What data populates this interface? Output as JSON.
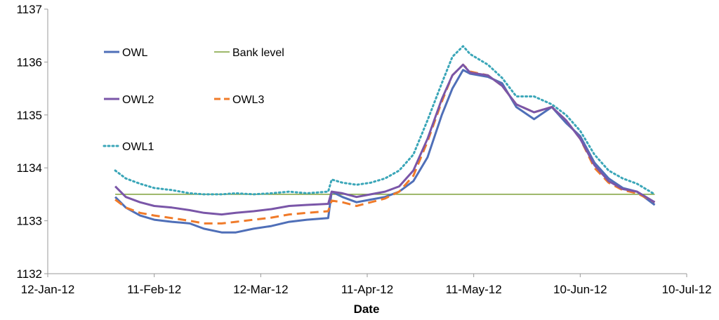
{
  "chart_data": {
    "type": "line",
    "title": "",
    "xlabel": "Date",
    "ylabel": "",
    "ylim": [
      1132,
      1137
    ],
    "xlim": [
      "2012-01-12",
      "2012-07-10"
    ],
    "yticks": [
      "1132",
      "1133",
      "1134",
      "1135",
      "1136",
      "1137"
    ],
    "xticks": [
      {
        "date": "2012-01-12",
        "label": "12-Jan-12"
      },
      {
        "date": "2012-02-11",
        "label": "11-Feb-12"
      },
      {
        "date": "2012-03-12",
        "label": "12-Mar-12"
      },
      {
        "date": "2012-04-11",
        "label": "11-Apr-12"
      },
      {
        "date": "2012-05-11",
        "label": "11-May-12"
      },
      {
        "date": "2012-06-10",
        "label": "10-Jun-12"
      },
      {
        "date": "2012-07-10",
        "label": "10-Jul-12"
      }
    ],
    "grid": false,
    "legend_position": "top-left (inside plot)",
    "series": [
      {
        "name": "OWL",
        "color": "#4f6fb8",
        "style": "solid",
        "points": [
          [
            "2012-01-31",
            1133.45
          ],
          [
            "2012-02-03",
            1133.25
          ],
          [
            "2012-02-07",
            1133.1
          ],
          [
            "2012-02-11",
            1133.02
          ],
          [
            "2012-02-16",
            1132.98
          ],
          [
            "2012-02-21",
            1132.95
          ],
          [
            "2012-02-25",
            1132.85
          ],
          [
            "2012-03-01",
            1132.78
          ],
          [
            "2012-03-05",
            1132.78
          ],
          [
            "2012-03-10",
            1132.85
          ],
          [
            "2012-03-15",
            1132.9
          ],
          [
            "2012-03-20",
            1132.98
          ],
          [
            "2012-03-25",
            1133.02
          ],
          [
            "2012-03-31",
            1133.05
          ],
          [
            "2012-04-01",
            1133.55
          ],
          [
            "2012-04-04",
            1133.45
          ],
          [
            "2012-04-08",
            1133.35
          ],
          [
            "2012-04-12",
            1133.4
          ],
          [
            "2012-04-16",
            1133.45
          ],
          [
            "2012-04-20",
            1133.55
          ],
          [
            "2012-04-24",
            1133.75
          ],
          [
            "2012-04-28",
            1134.2
          ],
          [
            "2012-05-02",
            1135.0
          ],
          [
            "2012-05-05",
            1135.5
          ],
          [
            "2012-05-08",
            1135.85
          ],
          [
            "2012-05-10",
            1135.78
          ],
          [
            "2012-05-15",
            1135.72
          ],
          [
            "2012-05-19",
            1135.6
          ],
          [
            "2012-05-23",
            1135.15
          ],
          [
            "2012-05-28",
            1134.92
          ],
          [
            "2012-06-02",
            1135.15
          ],
          [
            "2012-06-06",
            1134.85
          ],
          [
            "2012-06-10",
            1134.6
          ],
          [
            "2012-06-14",
            1134.1
          ],
          [
            "2012-06-18",
            1133.8
          ],
          [
            "2012-06-22",
            1133.62
          ],
          [
            "2012-06-26",
            1133.55
          ],
          [
            "2012-07-01",
            1133.3
          ]
        ]
      },
      {
        "name": "Bank level",
        "color": "#7fa03a",
        "style": "solid",
        "points": [
          [
            "2012-01-31",
            1133.5
          ],
          [
            "2012-07-01",
            1133.5
          ]
        ]
      },
      {
        "name": "OWL2",
        "color": "#7a56a8",
        "style": "solid",
        "points": [
          [
            "2012-01-31",
            1133.65
          ],
          [
            "2012-02-03",
            1133.45
          ],
          [
            "2012-02-07",
            1133.35
          ],
          [
            "2012-02-11",
            1133.28
          ],
          [
            "2012-02-16",
            1133.25
          ],
          [
            "2012-02-21",
            1133.2
          ],
          [
            "2012-02-25",
            1133.15
          ],
          [
            "2012-03-01",
            1133.12
          ],
          [
            "2012-03-05",
            1133.15
          ],
          [
            "2012-03-10",
            1133.18
          ],
          [
            "2012-03-15",
            1133.22
          ],
          [
            "2012-03-20",
            1133.28
          ],
          [
            "2012-03-25",
            1133.3
          ],
          [
            "2012-03-31",
            1133.32
          ],
          [
            "2012-04-01",
            1133.55
          ],
          [
            "2012-04-04",
            1133.52
          ],
          [
            "2012-04-08",
            1133.45
          ],
          [
            "2012-04-12",
            1133.5
          ],
          [
            "2012-04-16",
            1133.55
          ],
          [
            "2012-04-20",
            1133.65
          ],
          [
            "2012-04-24",
            1133.95
          ],
          [
            "2012-04-28",
            1134.55
          ],
          [
            "2012-05-02",
            1135.3
          ],
          [
            "2012-05-05",
            1135.75
          ],
          [
            "2012-05-08",
            1135.95
          ],
          [
            "2012-05-10",
            1135.8
          ],
          [
            "2012-05-15",
            1135.75
          ],
          [
            "2012-05-19",
            1135.55
          ],
          [
            "2012-05-23",
            1135.2
          ],
          [
            "2012-05-28",
            1135.05
          ],
          [
            "2012-06-02",
            1135.15
          ],
          [
            "2012-06-06",
            1134.9
          ],
          [
            "2012-06-10",
            1134.55
          ],
          [
            "2012-06-14",
            1134.05
          ],
          [
            "2012-06-18",
            1133.75
          ],
          [
            "2012-06-22",
            1133.6
          ],
          [
            "2012-06-26",
            1133.55
          ],
          [
            "2012-07-01",
            1133.35
          ]
        ]
      },
      {
        "name": "OWL3",
        "color": "#f07b2a",
        "style": "dashed",
        "points": [
          [
            "2012-01-31",
            1133.4
          ],
          [
            "2012-02-03",
            1133.25
          ],
          [
            "2012-02-07",
            1133.15
          ],
          [
            "2012-02-11",
            1133.1
          ],
          [
            "2012-02-16",
            1133.05
          ],
          [
            "2012-02-21",
            1133.0
          ],
          [
            "2012-02-25",
            1132.95
          ],
          [
            "2012-03-01",
            1132.95
          ],
          [
            "2012-03-05",
            1132.98
          ],
          [
            "2012-03-10",
            1133.02
          ],
          [
            "2012-03-15",
            1133.06
          ],
          [
            "2012-03-20",
            1133.12
          ],
          [
            "2012-03-25",
            1133.15
          ],
          [
            "2012-03-31",
            1133.18
          ],
          [
            "2012-04-01",
            1133.38
          ],
          [
            "2012-04-04",
            1133.35
          ],
          [
            "2012-04-08",
            1133.28
          ],
          [
            "2012-04-12",
            1133.35
          ],
          [
            "2012-04-16",
            1133.42
          ],
          [
            "2012-04-20",
            1133.55
          ],
          [
            "2012-04-24",
            1133.85
          ],
          [
            "2012-04-28",
            1134.5
          ],
          [
            "2012-05-02",
            1135.25
          ],
          [
            "2012-05-05",
            1135.75
          ],
          [
            "2012-05-08",
            1135.95
          ],
          [
            "2012-05-10",
            1135.82
          ],
          [
            "2012-05-15",
            1135.75
          ],
          [
            "2012-05-19",
            1135.55
          ],
          [
            "2012-05-23",
            1135.2
          ],
          [
            "2012-05-28",
            1135.05
          ],
          [
            "2012-06-02",
            1135.15
          ],
          [
            "2012-06-06",
            1134.9
          ],
          [
            "2012-06-10",
            1134.55
          ],
          [
            "2012-06-14",
            1134.0
          ],
          [
            "2012-06-18",
            1133.72
          ],
          [
            "2012-06-22",
            1133.58
          ],
          [
            "2012-06-26",
            1133.52
          ],
          [
            "2012-07-01",
            1133.35
          ]
        ]
      },
      {
        "name": "OWL1",
        "color": "#3aa6b8",
        "style": "dotted",
        "points": [
          [
            "2012-01-31",
            1133.95
          ],
          [
            "2012-02-03",
            1133.8
          ],
          [
            "2012-02-07",
            1133.7
          ],
          [
            "2012-02-11",
            1133.62
          ],
          [
            "2012-02-16",
            1133.58
          ],
          [
            "2012-02-21",
            1133.52
          ],
          [
            "2012-02-25",
            1133.5
          ],
          [
            "2012-03-01",
            1133.5
          ],
          [
            "2012-03-05",
            1133.52
          ],
          [
            "2012-03-10",
            1133.5
          ],
          [
            "2012-03-15",
            1133.52
          ],
          [
            "2012-03-20",
            1133.55
          ],
          [
            "2012-03-25",
            1133.52
          ],
          [
            "2012-03-31",
            1133.55
          ],
          [
            "2012-04-01",
            1133.78
          ],
          [
            "2012-04-04",
            1133.72
          ],
          [
            "2012-04-08",
            1133.68
          ],
          [
            "2012-04-12",
            1133.72
          ],
          [
            "2012-04-16",
            1133.8
          ],
          [
            "2012-04-20",
            1133.95
          ],
          [
            "2012-04-24",
            1134.25
          ],
          [
            "2012-04-28",
            1134.9
          ],
          [
            "2012-05-02",
            1135.6
          ],
          [
            "2012-05-05",
            1136.1
          ],
          [
            "2012-05-08",
            1136.3
          ],
          [
            "2012-05-10",
            1136.15
          ],
          [
            "2012-05-15",
            1135.95
          ],
          [
            "2012-05-19",
            1135.7
          ],
          [
            "2012-05-23",
            1135.35
          ],
          [
            "2012-05-28",
            1135.35
          ],
          [
            "2012-06-02",
            1135.2
          ],
          [
            "2012-06-06",
            1135.0
          ],
          [
            "2012-06-10",
            1134.7
          ],
          [
            "2012-06-14",
            1134.25
          ],
          [
            "2012-06-18",
            1133.95
          ],
          [
            "2012-06-22",
            1133.8
          ],
          [
            "2012-06-26",
            1133.7
          ],
          [
            "2012-07-01",
            1133.5
          ]
        ]
      }
    ],
    "legend": [
      {
        "series": "OWL",
        "label": "OWL",
        "color": "#4f6fb8",
        "style": "solid"
      },
      {
        "series": "Bank level",
        "label": "Bank level",
        "color": "#7fa03a",
        "style": "solid"
      },
      {
        "series": "OWL2",
        "label": "OWL2",
        "color": "#7a56a8",
        "style": "solid"
      },
      {
        "series": "OWL3",
        "label": "OWL3",
        "color": "#f07b2a",
        "style": "dashed"
      },
      {
        "series": "OWL1",
        "label": "OWL1",
        "color": "#3aa6b8",
        "style": "dotted"
      }
    ]
  }
}
